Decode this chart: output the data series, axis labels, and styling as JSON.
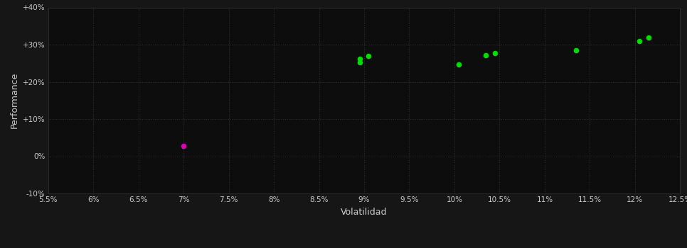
{
  "background_color": "#161616",
  "plot_bg_color": "#0d0d0d",
  "grid_color": "#333333",
  "text_color": "#cccccc",
  "xlabel": "Volatilidad",
  "ylabel": "Performance",
  "xlim": [
    0.055,
    0.125
  ],
  "ylim": [
    -0.1,
    0.4
  ],
  "xticks": [
    0.055,
    0.06,
    0.065,
    0.07,
    0.075,
    0.08,
    0.085,
    0.09,
    0.095,
    0.1,
    0.105,
    0.11,
    0.115,
    0.12,
    0.125
  ],
  "yticks": [
    -0.1,
    0.0,
    0.1,
    0.2,
    0.3,
    0.4
  ],
  "ytick_labels": [
    "-10%",
    "0%",
    "+10%",
    "+20%",
    "+30%",
    "+40%"
  ],
  "xtick_labels": [
    "5.5%",
    "6%",
    "6.5%",
    "7%",
    "7.5%",
    "8%",
    "8.5%",
    "9%",
    "9.5%",
    "10%",
    "10.5%",
    "11%",
    "11.5%",
    "12%",
    "12.5%"
  ],
  "green_points": [
    [
      0.0895,
      0.262
    ],
    [
      0.0905,
      0.269
    ],
    [
      0.0895,
      0.253
    ],
    [
      0.1005,
      0.247
    ],
    [
      0.1035,
      0.272
    ],
    [
      0.1045,
      0.278
    ],
    [
      0.1135,
      0.285
    ],
    [
      0.1205,
      0.31
    ],
    [
      0.1215,
      0.32
    ]
  ],
  "magenta_points": [
    [
      0.07,
      0.028
    ]
  ],
  "green_color": "#00dd00",
  "magenta_color": "#dd00bb",
  "marker_size": 20
}
